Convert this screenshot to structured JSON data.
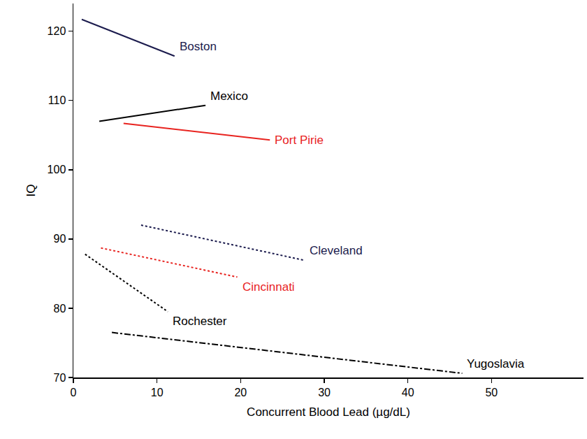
{
  "chart_data": {
    "type": "line",
    "x_label": "Concurrent Blood Lead (µg/dL)",
    "y_label": "IQ",
    "xlim": [
      0,
      61
    ],
    "xticks": [
      0,
      10,
      20,
      30,
      40,
      50
    ],
    "ylim": [
      70,
      124
    ],
    "yticks": [
      70,
      80,
      90,
      100,
      110,
      120
    ],
    "grid": false,
    "series": [
      {
        "name": "Boston",
        "color": "#1b1b4d",
        "line_style": "solid",
        "x": [
          1.0,
          12.1
        ],
        "values": [
          121.7,
          116.4
        ]
      },
      {
        "name": "Mexico",
        "color": "#000000",
        "line_style": "solid",
        "x": [
          3.1,
          15.8
        ],
        "values": [
          107.0,
          109.3
        ]
      },
      {
        "name": "Port Pirie",
        "color": "#e8231f",
        "line_style": "solid",
        "x": [
          6.0,
          23.5
        ],
        "values": [
          106.7,
          104.3
        ]
      },
      {
        "name": "Cleveland",
        "color": "#1b1b4d",
        "line_style": "dot",
        "x": [
          8.1,
          27.7
        ],
        "values": [
          92.0,
          86.9
        ]
      },
      {
        "name": "Cincinnati",
        "color": "#e8231f",
        "line_style": "dot",
        "x": [
          3.3,
          19.6
        ],
        "values": [
          88.7,
          84.5
        ]
      },
      {
        "name": "Rochester",
        "color": "#000000",
        "line_style": "dot",
        "x": [
          1.4,
          11.3
        ],
        "values": [
          87.8,
          79.5
        ]
      },
      {
        "name": "Yugoslavia",
        "color": "#000000",
        "line_style": "dashdot",
        "x": [
          4.6,
          46.5
        ],
        "values": [
          76.5,
          70.6
        ]
      }
    ]
  }
}
